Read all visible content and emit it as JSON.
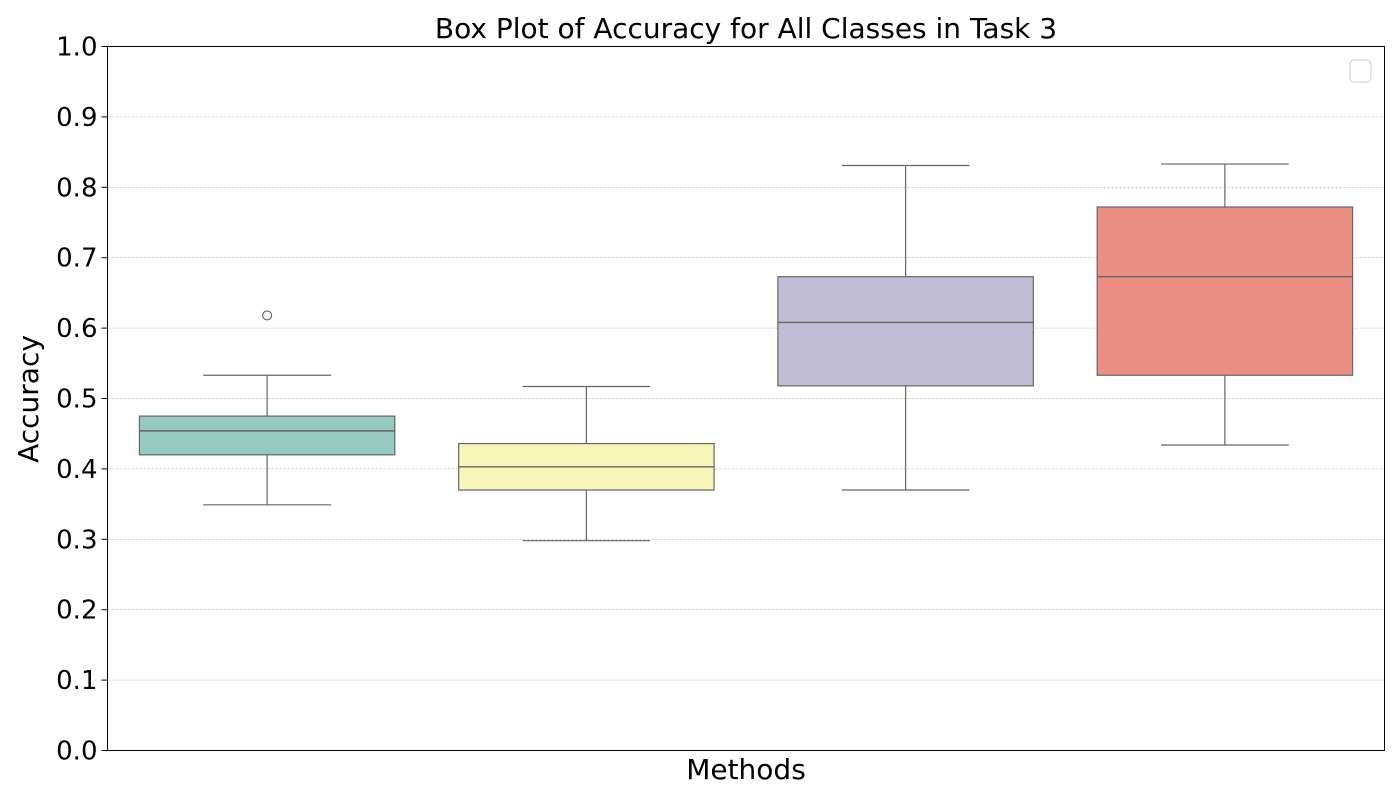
{
  "chart_data": {
    "type": "box",
    "title": "Box Plot of Accuracy for All Classes in Task 3",
    "xlabel": "Methods",
    "ylabel": "Accuracy",
    "ylim": [
      0.0,
      1.0
    ],
    "yticks": [
      0.0,
      0.1,
      0.2,
      0.3,
      0.4,
      0.5,
      0.6,
      0.7,
      0.8,
      0.9,
      1.0
    ],
    "ytick_labels": [
      "0.0",
      "0.1",
      "0.2",
      "0.3",
      "0.4",
      "0.5",
      "0.6",
      "0.7",
      "0.8",
      "0.9",
      "1.0"
    ],
    "grid": "y-dotted",
    "legend": "top-right (empty)",
    "boxes": [
      {
        "color": "#96c9c0",
        "whisker_low": 0.349,
        "q1": 0.42,
        "median": 0.454,
        "q3": 0.475,
        "whisker_high": 0.533,
        "outliers": [
          0.618
        ]
      },
      {
        "color": "#f7f6b8",
        "whisker_low": 0.298,
        "q1": 0.37,
        "median": 0.403,
        "q3": 0.436,
        "whisker_high": 0.517,
        "outliers": []
      },
      {
        "color": "#c1bdd6",
        "whisker_low": 0.37,
        "q1": 0.518,
        "median": 0.608,
        "q3": 0.673,
        "whisker_high": 0.831,
        "outliers": []
      },
      {
        "color": "#ea8e83",
        "whisker_low": 0.434,
        "q1": 0.533,
        "median": 0.673,
        "q3": 0.772,
        "whisker_high": 0.833,
        "outliers": []
      }
    ]
  }
}
